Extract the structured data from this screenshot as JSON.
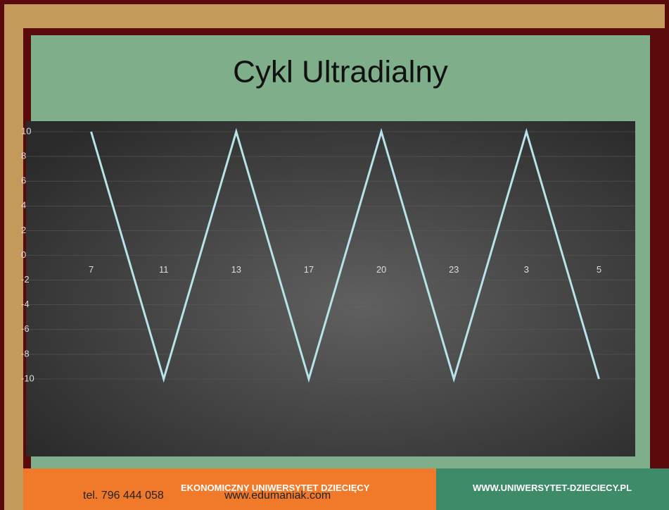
{
  "chart_data": {
    "type": "line",
    "title": "Cykl Ultradialny",
    "categories": [
      "7",
      "11",
      "13",
      "17",
      "20",
      "23",
      "3",
      "5"
    ],
    "series": [
      {
        "color": "#b7e3ea",
        "values": [
          10,
          -10,
          10,
          -10,
          10,
          -10,
          10,
          -10
        ]
      }
    ],
    "ylim": [
      -10,
      10
    ],
    "yticks": [
      -10,
      -8,
      -6,
      -4,
      -2,
      0,
      2,
      4,
      6,
      8,
      10
    ],
    "grid": true
  },
  "footer": {
    "phone": "tel. 796 444 058",
    "org": "EKONOMICZNY UNIWERSYTET DZIECIĘCY",
    "website": "www.edumaniak.com",
    "url": "WWW.UNIWERSYTET-DZIECIECY.PL"
  }
}
